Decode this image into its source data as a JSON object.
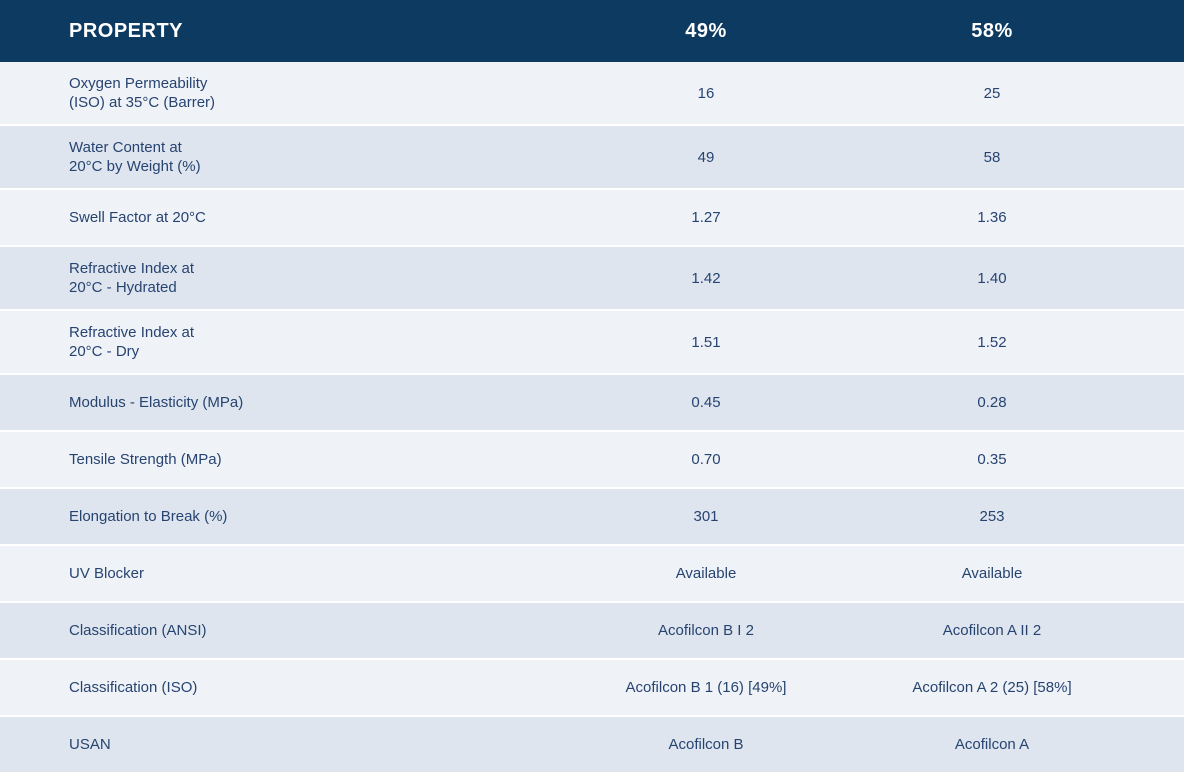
{
  "colors": {
    "header_bg": "#0d3a61",
    "header_text": "#ffffff",
    "row_light": "#eff2f7",
    "row_dark": "#dee5ef",
    "text": "#274471"
  },
  "table": {
    "columns": [
      "PROPERTY",
      "49%",
      "58%"
    ],
    "rows": [
      {
        "property": "Oxygen Permeability\n(ISO) at 35°C (Barrer)",
        "values": [
          "16",
          "25"
        ]
      },
      {
        "property": "Water Content at\n20°C by Weight (%)",
        "values": [
          "49",
          "58"
        ]
      },
      {
        "property": "Swell Factor at 20°C",
        "values": [
          "1.27",
          "1.36"
        ]
      },
      {
        "property": "Refractive Index at\n20°C - Hydrated",
        "values": [
          "1.42",
          "1.40"
        ]
      },
      {
        "property": "Refractive Index at\n20°C - Dry",
        "values": [
          "1.51",
          "1.52"
        ]
      },
      {
        "property": "Modulus - Elasticity (MPa)",
        "values": [
          "0.45",
          "0.28"
        ]
      },
      {
        "property": "Tensile Strength (MPa)",
        "values": [
          "0.70",
          "0.35"
        ]
      },
      {
        "property": "Elongation to Break (%)",
        "values": [
          "301",
          "253"
        ]
      },
      {
        "property": "UV Blocker",
        "values": [
          "Available",
          "Available"
        ]
      },
      {
        "property": "Classification (ANSI)",
        "values": [
          "Acofilcon B I 2",
          "Acofilcon A II 2"
        ]
      },
      {
        "property": "Classification (ISO)",
        "values": [
          "Acofilcon B 1 (16) [49%]",
          "Acofilcon  A 2 (25) [58%]"
        ]
      },
      {
        "property": "USAN",
        "values": [
          "Acofilcon B",
          "Acofilcon A"
        ]
      }
    ]
  }
}
